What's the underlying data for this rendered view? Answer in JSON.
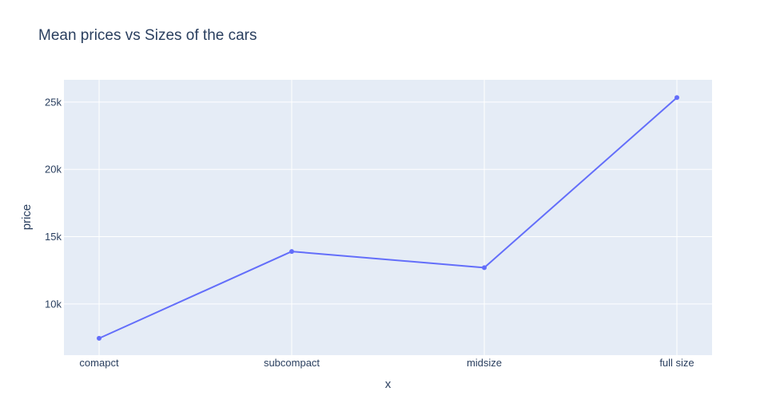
{
  "chart_data": {
    "type": "line",
    "title": "Mean prices vs Sizes of the cars",
    "xlabel": "x",
    "ylabel": "price",
    "categories": [
      "comapct",
      "subcompact",
      "midsize",
      "full size"
    ],
    "series": [
      {
        "values": [
          7450,
          13900,
          12700,
          25330
        ]
      }
    ],
    "ylim": [
      6200,
      26650
    ],
    "yticks": [
      10000,
      15000,
      20000,
      25000
    ],
    "ytick_labels": [
      "10k",
      "15k",
      "20k",
      "25k"
    ],
    "grid": true,
    "markers": true,
    "colors": {
      "line": "#636efa",
      "plot_bg": "#e5ecf6",
      "grid": "#ffffff",
      "text": "#2a3f5f"
    }
  }
}
